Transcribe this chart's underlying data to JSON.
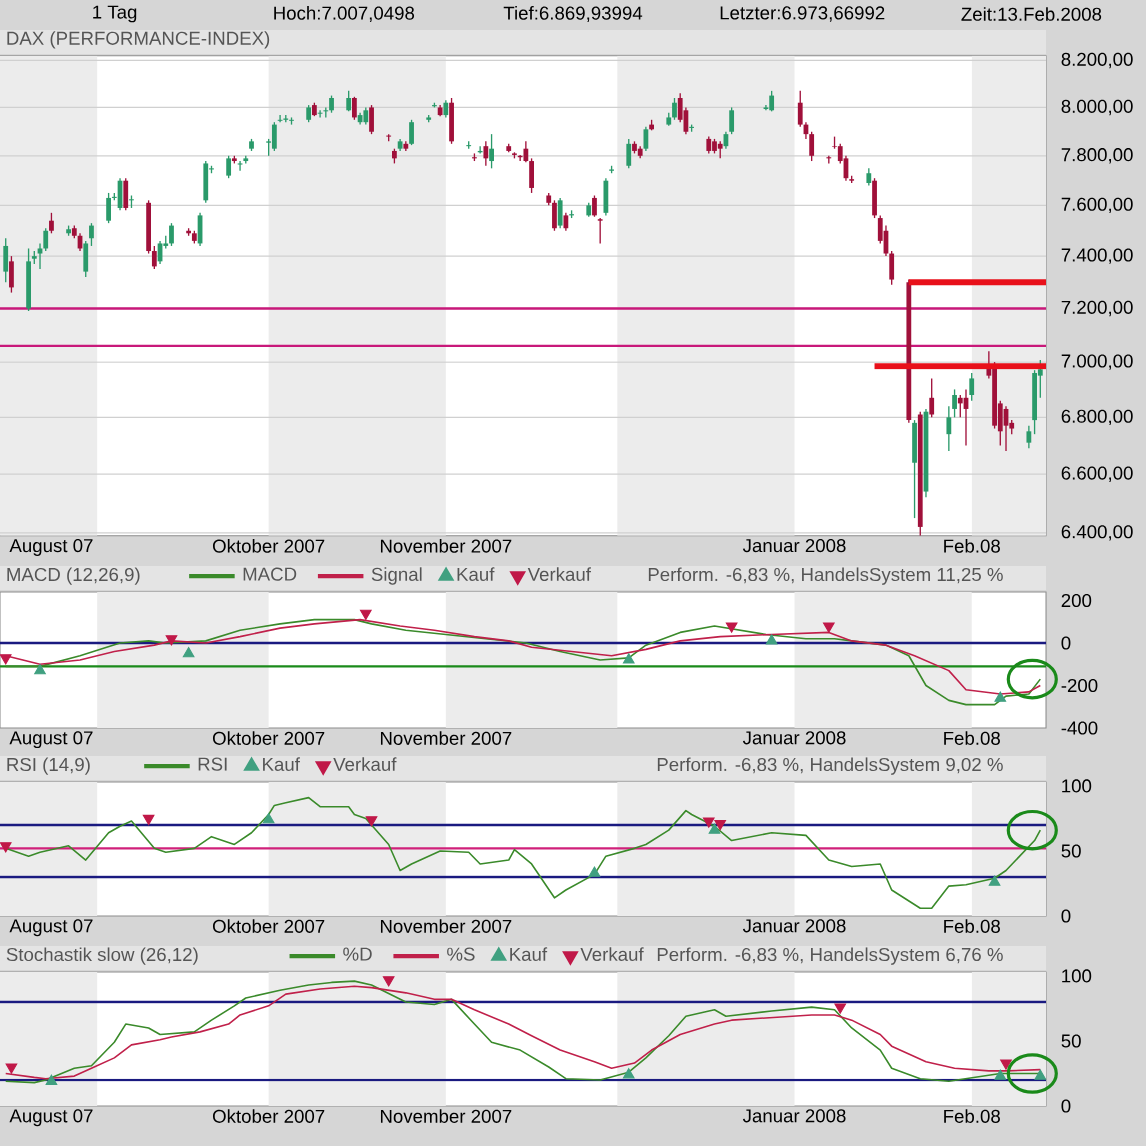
{
  "chart_data": [
    {
      "type": "candlestick",
      "title": "DAX (PERFORMANCE-INDEX)",
      "annotations": [
        "1 Tag",
        "Hoch:7.007,0498",
        "Tief:6.869,93994",
        "Letzter:6.973,66992",
        "Zeit:13.Feb.2008"
      ],
      "x": [
        "2007-08-16",
        "2007-08-17",
        "2007-08-20",
        "2007-08-21",
        "2007-08-22",
        "2007-08-23",
        "2007-08-24",
        "2007-08-27",
        "2007-08-28",
        "2007-08-29",
        "2007-08-30",
        "2007-08-31",
        "2007-09-03",
        "2007-09-04",
        "2007-09-05",
        "2007-09-06",
        "2007-09-07",
        "2007-09-10",
        "2007-09-11",
        "2007-09-12",
        "2007-09-13",
        "2007-09-14",
        "2007-09-17",
        "2007-09-18",
        "2007-09-19",
        "2007-09-20",
        "2007-09-21",
        "2007-09-24",
        "2007-09-25",
        "2007-09-26",
        "2007-09-27",
        "2007-09-28",
        "2007-10-01",
        "2007-10-02",
        "2007-10-03",
        "2007-10-04",
        "2007-10-05",
        "2007-10-08",
        "2007-10-09",
        "2007-10-10",
        "2007-10-11",
        "2007-10-12",
        "2007-10-15",
        "2007-10-16",
        "2007-10-17",
        "2007-10-18",
        "2007-10-19",
        "2007-10-22",
        "2007-10-23",
        "2007-10-24",
        "2007-10-25",
        "2007-10-26",
        "2007-10-29",
        "2007-10-30",
        "2007-10-31",
        "2007-11-01",
        "2007-11-02",
        "2007-11-05",
        "2007-11-06",
        "2007-11-07",
        "2007-11-08",
        "2007-11-09",
        "2007-11-12",
        "2007-11-13",
        "2007-11-14",
        "2007-11-15",
        "2007-11-16",
        "2007-11-19",
        "2007-11-20",
        "2007-11-21",
        "2007-11-22",
        "2007-11-23",
        "2007-11-26",
        "2007-11-27",
        "2007-11-28",
        "2007-11-29",
        "2007-11-30",
        "2007-12-03",
        "2007-12-04",
        "2007-12-05",
        "2007-12-06",
        "2007-12-07",
        "2007-12-10",
        "2007-12-11",
        "2007-12-12",
        "2007-12-13",
        "2007-12-14",
        "2007-12-17",
        "2007-12-18",
        "2007-12-19",
        "2007-12-20",
        "2007-12-21",
        "2007-12-27",
        "2007-12-28",
        "2008-01-02",
        "2008-01-03",
        "2008-01-04",
        "2008-01-07",
        "2008-01-08",
        "2008-01-09",
        "2008-01-10",
        "2008-01-11",
        "2008-01-14",
        "2008-01-15",
        "2008-01-16",
        "2008-01-17",
        "2008-01-18",
        "2008-01-21",
        "2008-01-22",
        "2008-01-23",
        "2008-01-24",
        "2008-01-25",
        "2008-01-28",
        "2008-01-29",
        "2008-01-30",
        "2008-01-31",
        "2008-02-01",
        "2008-02-04",
        "2008-02-05",
        "2008-02-06",
        "2008-02-07",
        "2008-02-08",
        "2008-02-11",
        "2008-02-12",
        "2008-02-13"
      ],
      "ohlc": [
        [
          7340,
          7470,
          7300,
          7440
        ],
        [
          7380,
          7400,
          7260,
          7280
        ],
        [
          7200,
          7430,
          7190,
          7380
        ],
        [
          7390,
          7420,
          7370,
          7400
        ],
        [
          7410,
          7450,
          7350,
          7430
        ],
        [
          7430,
          7510,
          7420,
          7500
        ],
        [
          7540,
          7570,
          7490,
          7500
        ],
        [
          7490,
          7520,
          7480,
          7505
        ],
        [
          7510,
          7520,
          7470,
          7480
        ],
        [
          7480,
          7490,
          7420,
          7430
        ],
        [
          7340,
          7460,
          7320,
          7450
        ],
        [
          7470,
          7530,
          7440,
          7520
        ],
        [
          7540,
          7650,
          7530,
          7630
        ],
        [
          7630,
          7650,
          7620,
          7635
        ],
        [
          7590,
          7710,
          7580,
          7700
        ],
        [
          7700,
          7710,
          7580,
          7590
        ],
        [
          7620,
          7640,
          7590,
          7625
        ],
        [
          7610,
          7620,
          7410,
          7420
        ],
        [
          7420,
          7440,
          7350,
          7360
        ],
        [
          7380,
          7460,
          7370,
          7450
        ],
        [
          7440,
          7480,
          7430,
          7450
        ],
        [
          7450,
          7530,
          7440,
          7520
        ],
        [
          7500,
          7510,
          7480,
          7490
        ],
        [
          7490,
          7500,
          7450,
          7460
        ],
        [
          7450,
          7570,
          7440,
          7560
        ],
        [
          7620,
          7780,
          7610,
          7770
        ],
        [
          7745,
          7760,
          7730,
          7750
        ],
        [
          7720,
          7800,
          7710,
          7790
        ],
        [
          7790,
          7800,
          7770,
          7780
        ],
        [
          7765,
          7780,
          7740,
          7770
        ],
        [
          7780,
          7800,
          7770,
          7790
        ],
        [
          7830,
          7870,
          7820,
          7860
        ],
        [
          7855,
          7870,
          7800,
          7860
        ],
        [
          7830,
          7940,
          7820,
          7930
        ],
        [
          7945,
          7970,
          7940,
          7950
        ],
        [
          7950,
          7970,
          7940,
          7955
        ],
        [
          7945,
          7960,
          7930,
          7950
        ],
        [
          7950,
          8010,
          7940,
          8000
        ],
        [
          8010,
          8020,
          7965,
          7970
        ],
        [
          7975,
          7990,
          7960,
          7980
        ],
        [
          7985,
          8000,
          7960,
          7990
        ],
        [
          7990,
          8050,
          7980,
          8040
        ],
        [
          7990,
          8070,
          7985,
          8040
        ],
        [
          8040,
          8045,
          7950,
          7960
        ],
        [
          7940,
          7980,
          7930,
          7970
        ],
        [
          7940,
          8000,
          7930,
          7990
        ],
        [
          8000,
          8010,
          7890,
          7900
        ],
        [
          7885,
          7890,
          7860,
          7880
        ],
        [
          7820,
          7830,
          7770,
          7790
        ],
        [
          7830,
          7870,
          7820,
          7860
        ],
        [
          7850,
          7860,
          7820,
          7830
        ],
        [
          7850,
          7950,
          7845,
          7940
        ],
        [
          7950,
          7970,
          7940,
          7960
        ],
        [
          8005,
          8020,
          8000,
          8010
        ],
        [
          8000,
          8010,
          7965,
          7970
        ],
        [
          7970,
          8030,
          7960,
          8020
        ],
        [
          8020,
          8040,
          7850,
          7860
        ],
        [
          7840,
          7860,
          7830,
          7845
        ],
        [
          7795,
          7810,
          7780,
          7790
        ],
        [
          7815,
          7840,
          7810,
          7820
        ],
        [
          7840,
          7860,
          7760,
          7790
        ],
        [
          7780,
          7890,
          7750,
          7830
        ],
        [
          7840,
          7850,
          7815,
          7820
        ],
        [
          7810,
          7815,
          7790,
          7805
        ],
        [
          7800,
          7805,
          7780,
          7795
        ],
        [
          7830,
          7860,
          7775,
          7780
        ],
        [
          7780,
          7790,
          7650,
          7670
        ],
        [
          7640,
          7650,
          7600,
          7610
        ],
        [
          7610,
          7620,
          7500,
          7510
        ],
        [
          7520,
          7630,
          7510,
          7620
        ],
        [
          7560,
          7570,
          7500,
          7510
        ],
        [
          7560,
          7580,
          7550,
          7565
        ],
        [
          7560,
          7610,
          7555,
          7600
        ],
        [
          7630,
          7640,
          7555,
          7560
        ],
        [
          7545,
          7550,
          7450,
          7540
        ],
        [
          7570,
          7710,
          7560,
          7700
        ],
        [
          7740,
          7760,
          7730,
          7745
        ],
        [
          7760,
          7870,
          7750,
          7850
        ],
        [
          7850,
          7860,
          7810,
          7820
        ],
        [
          7830,
          7840,
          7790,
          7800
        ],
        [
          7830,
          7920,
          7820,
          7910
        ],
        [
          7930,
          7950,
          7905,
          7910
        ],
        [
          7930,
          7980,
          7925,
          7960
        ],
        [
          7960,
          8040,
          7950,
          8020
        ],
        [
          8040,
          8060,
          7940,
          7950
        ],
        [
          7990,
          8000,
          7890,
          7900
        ],
        [
          7915,
          7930,
          7900,
          7920
        ],
        [
          7870,
          7880,
          7810,
          7820
        ],
        [
          7860,
          7870,
          7810,
          7820
        ],
        [
          7850,
          7860,
          7790,
          7830
        ],
        [
          7840,
          7900,
          7830,
          7890
        ],
        [
          7900,
          8000,
          7890,
          7990
        ],
        [
          7995,
          8010,
          7990,
          8000
        ],
        [
          7990,
          8070,
          7985,
          8050
        ],
        [
          8020,
          8070,
          7920,
          7930
        ],
        [
          7930,
          7940,
          7870,
          7890
        ],
        [
          7890,
          7900,
          7780,
          7800
        ],
        [
          7795,
          7800,
          7770,
          7790
        ],
        [
          7840,
          7880,
          7830,
          7838
        ],
        [
          7840,
          7850,
          7770,
          7780
        ],
        [
          7790,
          7800,
          7700,
          7710
        ],
        [
          7705,
          7720,
          7690,
          7700
        ],
        [
          7690,
          7750,
          7680,
          7730
        ],
        [
          7700,
          7710,
          7550,
          7560
        ],
        [
          7550,
          7560,
          7450,
          7460
        ],
        [
          7500,
          7520,
          7400,
          7410
        ],
        [
          7410,
          7420,
          7290,
          7310
        ],
        [
          7300,
          7310,
          6780,
          6790
        ],
        [
          6640,
          6790,
          6450,
          6780
        ],
        [
          6810,
          6820,
          6390,
          6420
        ],
        [
          6540,
          6830,
          6520,
          6820
        ],
        [
          6870,
          6940,
          6800,
          6810
        ],
        [
          6740,
          6840,
          6680,
          6800
        ],
        [
          6830,
          6900,
          6800,
          6880
        ],
        [
          6870,
          6880,
          6800,
          6850
        ],
        [
          6870,
          6900,
          6700,
          6830
        ],
        [
          6880,
          6960,
          6860,
          6940
        ],
        [
          6980,
          7040,
          6940,
          6950
        ],
        [
          6990,
          7000,
          6760,
          6770
        ],
        [
          6850,
          6860,
          6700,
          6750
        ],
        [
          6830,
          6840,
          6680,
          6770
        ],
        [
          6780,
          6790,
          6740,
          6760
        ],
        [
          6710,
          6770,
          6690,
          6750
        ],
        [
          6790,
          6970,
          6740,
          6960
        ],
        [
          6950,
          7007.0498,
          6869.93994,
          6973.66992
        ]
      ],
      "colors": [
        "#2a9a6a",
        "#a0103a",
        "#2a9a6a",
        "#2a9a6a",
        "#2a9a6a",
        "#2a9a6a",
        "#a0103a",
        "#2a9a6a",
        "#a0103a",
        "#a0103a",
        "#2a9a6a",
        "#2a9a6a",
        "#2a9a6a",
        "#2a9a6a",
        "#2a9a6a",
        "#a0103a",
        "#2a9a6a",
        "#a0103a",
        "#a0103a",
        "#2a9a6a",
        "#2a9a6a",
        "#2a9a6a",
        "#a0103a",
        "#a0103a",
        "#2a9a6a",
        "#2a9a6a",
        "#2a9a6a",
        "#2a9a6a",
        "#a0103a",
        "#2a9a6a",
        "#2a9a6a",
        "#2a9a6a",
        "#2a9a6a",
        "#2a9a6a",
        "#2a9a6a",
        "#2a9a6a",
        "#2a9a6a",
        "#2a9a6a",
        "#a0103a",
        "#2a9a6a",
        "#2a9a6a",
        "#2a9a6a",
        "#2a9a6a",
        "#a0103a",
        "#2a9a6a",
        "#2a9a6a",
        "#a0103a",
        "#a0103a",
        "#a0103a",
        "#2a9a6a",
        "#a0103a",
        "#2a9a6a",
        "#2a9a6a",
        "#2a9a6a",
        "#a0103a",
        "#2a9a6a",
        "#a0103a",
        "#2a9a6a",
        "#a0103a",
        "#2a9a6a",
        "#a0103a",
        "#2a9a6a",
        "#a0103a",
        "#a0103a",
        "#a0103a",
        "#a0103a",
        "#a0103a",
        "#a0103a",
        "#a0103a",
        "#2a9a6a",
        "#a0103a",
        "#2a9a6a",
        "#2a9a6a",
        "#a0103a",
        "#a0103a",
        "#2a9a6a",
        "#2a9a6a",
        "#2a9a6a",
        "#a0103a",
        "#a0103a",
        "#2a9a6a",
        "#a0103a",
        "#2a9a6a",
        "#2a9a6a",
        "#a0103a",
        "#a0103a",
        "#2a9a6a",
        "#a0103a",
        "#a0103a",
        "#a0103a",
        "#2a9a6a",
        "#2a9a6a",
        "#2a9a6a",
        "#2a9a6a",
        "#a0103a",
        "#a0103a",
        "#a0103a",
        "#a0103a",
        "#a0103a",
        "#a0103a",
        "#a0103a",
        "#a0103a",
        "#2a9a6a",
        "#a0103a",
        "#a0103a",
        "#a0103a",
        "#a0103a",
        "#a0103a",
        "#2a9a6a",
        "#a0103a",
        "#2a9a6a",
        "#a0103a",
        "#2a9a6a",
        "#2a9a6a",
        "#a0103a",
        "#a0103a",
        "#2a9a6a",
        "#a0103a",
        "#a0103a",
        "#a0103a",
        "#a0103a",
        "#a0103a",
        "#2a9a6a",
        "#2a9a6a",
        "#2a9a6a"
      ],
      "xlim": [
        "2007-08-15",
        "2008-02-14"
      ],
      "xticks": [
        {
          "value": "2007-08-24",
          "label": "August 07"
        },
        {
          "value": "2007-10-01",
          "label": "Oktober 2007"
        },
        {
          "value": "2007-11-01",
          "label": "November 2007"
        },
        {
          "value": "2008-01-01",
          "label": "Januar 2008"
        },
        {
          "value": "2008-02-01",
          "label": "Feb.08"
        }
      ],
      "ylim": [
        6390,
        8220
      ],
      "log": "y",
      "yticks": [
        {
          "value": 6400,
          "label": "6.400,00"
        },
        {
          "value": 6600,
          "label": "6.600,00"
        },
        {
          "value": 6800,
          "label": "6.800,00"
        },
        {
          "value": 7000,
          "label": "7.000,00"
        },
        {
          "value": 7200,
          "label": "7.200,00"
        },
        {
          "value": 7400,
          "label": "7.400,00"
        },
        {
          "value": 7600,
          "label": "7.600,00"
        },
        {
          "value": 7800,
          "label": "7.800,00"
        },
        {
          "value": 8000,
          "label": "8.000,00"
        },
        {
          "value": 8200,
          "label": "8.200,00"
        }
      ],
      "grid": "y",
      "bands": [
        {
          "axis": "x",
          "from": "2007-08-15",
          "to": "2007-09-01",
          "color": "#ececec"
        },
        {
          "axis": "x",
          "from": "2007-10-01",
          "to": "2007-11-01",
          "color": "#ececec"
        },
        {
          "axis": "x",
          "from": "2007-12-01",
          "to": "2008-01-01",
          "color": "#ececec"
        },
        {
          "axis": "x",
          "from": "2008-02-01",
          "to": "2008-02-14",
          "color": "#ececec"
        }
      ],
      "ref_lines": [
        {
          "axis": "y",
          "value": 7200,
          "color": "#c8187a"
        },
        {
          "axis": "y",
          "value": 7060,
          "color": "#c8187a"
        }
      ],
      "series": [
        {
          "type": "line",
          "color": "#e8101a",
          "x": [
            "2008-01-21",
            "2008-02-14"
          ],
          "values": [
            7300,
            7300
          ]
        },
        {
          "type": "line",
          "color": "#e8101a",
          "x": [
            "2008-01-15",
            "2008-02-14"
          ],
          "values": [
            6985,
            6985
          ]
        }
      ]
    },
    {
      "type": "line",
      "title": "MACD (12,26,9)",
      "subtitle": "Perform. -6,83 %, HandelsSystem 11,25 %",
      "legend": "top",
      "xlim": [
        "2007-08-15",
        "2008-02-14"
      ],
      "xticks": [
        {
          "value": "2007-08-24",
          "label": "August 07"
        },
        {
          "value": "2007-10-01",
          "label": "Oktober 2007"
        },
        {
          "value": "2007-11-01",
          "label": "November 2007"
        },
        {
          "value": "2008-01-01",
          "label": "Januar 2008"
        },
        {
          "value": "2008-02-01",
          "label": "Feb.08"
        }
      ],
      "ylim": [
        -400,
        240
      ],
      "yticks": [
        -400,
        -200,
        0,
        200
      ],
      "bands": [
        {
          "axis": "x",
          "from": "2007-09-01",
          "to": "2007-10-01",
          "color": "#ececec"
        },
        {
          "axis": "x",
          "from": "2007-11-01",
          "to": "2007-12-01",
          "color": "#ececec"
        },
        {
          "axis": "x",
          "from": "2008-01-01",
          "to": "2008-02-01",
          "color": "#ececec"
        }
      ],
      "ref_lines": [
        {
          "axis": "y",
          "value": 0,
          "color": "#1a1a80"
        },
        {
          "axis": "y",
          "value": -110,
          "color": "#1a8a1a"
        }
      ],
      "series": [
        {
          "name": "MACD",
          "type": "line",
          "color": "#3a8a2a",
          "x": [
            "2007-08-16",
            "2007-08-22",
            "2007-08-29",
            "2007-09-05",
            "2007-09-10",
            "2007-09-13",
            "2007-09-20",
            "2007-09-26",
            "2007-10-03",
            "2007-10-09",
            "2007-10-16",
            "2007-10-19",
            "2007-10-25",
            "2007-11-01",
            "2007-11-08",
            "2007-11-15",
            "2007-11-21",
            "2007-11-28",
            "2007-12-03",
            "2007-12-06",
            "2007-12-12",
            "2007-12-18",
            "2007-12-27",
            "2008-01-03",
            "2008-01-08",
            "2008-01-11",
            "2008-01-17",
            "2008-01-21",
            "2008-01-24",
            "2008-01-28",
            "2008-01-31",
            "2008-02-05",
            "2008-02-07",
            "2008-02-11",
            "2008-02-13"
          ],
          "values": [
            -110,
            -110,
            -60,
            0,
            10,
            0,
            10,
            60,
            90,
            110,
            110,
            90,
            60,
            40,
            20,
            0,
            -40,
            -80,
            -70,
            -10,
            50,
            80,
            40,
            20,
            20,
            10,
            -10,
            -60,
            -200,
            -270,
            -290,
            -290,
            -250,
            -240,
            -170
          ]
        },
        {
          "name": "Signal",
          "type": "line",
          "color": "#c0204a",
          "x": [
            "2007-08-16",
            "2007-08-22",
            "2007-08-29",
            "2007-09-04",
            "2007-09-11",
            "2007-09-14",
            "2007-09-20",
            "2007-09-26",
            "2007-10-03",
            "2007-10-09",
            "2007-10-17",
            "2007-10-24",
            "2007-10-30",
            "2007-11-06",
            "2007-11-12",
            "2007-11-16",
            "2007-11-23",
            "2007-11-30",
            "2007-12-06",
            "2007-12-12",
            "2007-12-19",
            "2007-12-28",
            "2008-01-07",
            "2008-01-11",
            "2008-01-17",
            "2008-01-22",
            "2008-01-28",
            "2008-01-31",
            "2008-02-06",
            "2008-02-11",
            "2008-02-13"
          ],
          "values": [
            -60,
            -100,
            -80,
            -40,
            -10,
            10,
            0,
            30,
            70,
            90,
            110,
            80,
            60,
            30,
            10,
            -20,
            -40,
            -60,
            -30,
            10,
            30,
            40,
            50,
            10,
            -10,
            -60,
            -130,
            -220,
            -240,
            -230,
            -200
          ]
        },
        {
          "name": "Kauf",
          "type": "scatter",
          "marker": "triangle",
          "color": "#40a080",
          "x": [
            "2007-08-22",
            "2007-09-17",
            "2007-12-03",
            "2007-12-28",
            "2008-02-06"
          ],
          "values": [
            -130,
            -50,
            -80,
            10,
            -260
          ]
        },
        {
          "name": "Verkauf",
          "type": "scatter",
          "marker": "triangle-down",
          "color": "#c01848",
          "x": [
            "2007-08-16",
            "2007-09-14",
            "2007-10-18",
            "2007-12-21",
            "2008-01-07"
          ],
          "values": [
            -70,
            20,
            140,
            80,
            80
          ]
        }
      ]
    },
    {
      "type": "line",
      "title": "RSI (14,9)",
      "subtitle": "Perform. -6,83 %, HandelsSystem 9,02 %",
      "legend": "top",
      "xlim": [
        "2007-08-15",
        "2008-02-14"
      ],
      "xticks": [
        {
          "value": "2007-08-24",
          "label": "August 07"
        },
        {
          "value": "2007-10-01",
          "label": "Oktober 2007"
        },
        {
          "value": "2007-11-01",
          "label": "November 2007"
        },
        {
          "value": "2008-01-01",
          "label": "Januar 2008"
        },
        {
          "value": "2008-02-01",
          "label": "Feb.08"
        }
      ],
      "ylim": [
        0,
        103
      ],
      "yticks": [
        0,
        50,
        100
      ],
      "bands": [
        {
          "axis": "x",
          "from": "2007-08-15",
          "to": "2007-09-01",
          "color": "#ececec"
        },
        {
          "axis": "x",
          "from": "2007-10-01",
          "to": "2007-11-01",
          "color": "#ececec"
        },
        {
          "axis": "x",
          "from": "2007-12-01",
          "to": "2008-01-01",
          "color": "#ececec"
        },
        {
          "axis": "x",
          "from": "2008-02-01",
          "to": "2008-02-14",
          "color": "#ececec"
        }
      ],
      "ref_lines": [
        {
          "axis": "y",
          "value": 70,
          "color": "#1a1a80"
        },
        {
          "axis": "y",
          "value": 30,
          "color": "#1a1a80"
        },
        {
          "axis": "y",
          "value": 52,
          "color": "#d0207a"
        }
      ],
      "series": [
        {
          "name": "RSI",
          "type": "line",
          "color": "#3a8a2a",
          "x": [
            "2007-08-16",
            "2007-08-20",
            "2007-08-22",
            "2007-08-27",
            "2007-08-30",
            "2007-09-03",
            "2007-09-05",
            "2007-09-07",
            "2007-09-11",
            "2007-09-13",
            "2007-09-18",
            "2007-09-21",
            "2007-09-25",
            "2007-09-28",
            "2007-10-01",
            "2007-10-02",
            "2007-10-04",
            "2007-10-08",
            "2007-10-10",
            "2007-10-15",
            "2007-10-16",
            "2007-10-18",
            "2007-10-22",
            "2007-10-24",
            "2007-10-26",
            "2007-10-31",
            "2007-11-05",
            "2007-11-07",
            "2007-11-12",
            "2007-11-13",
            "2007-11-16",
            "2007-11-20",
            "2007-11-22",
            "2007-11-27",
            "2007-11-29",
            "2007-12-04",
            "2007-12-06",
            "2007-12-10",
            "2007-12-13",
            "2007-12-14",
            "2007-12-18",
            "2007-12-21",
            "2007-12-28",
            "2008-01-03",
            "2008-01-07",
            "2008-01-11",
            "2008-01-16",
            "2008-01-18",
            "2008-01-23",
            "2008-01-25",
            "2008-01-28",
            "2008-01-31",
            "2008-02-05",
            "2008-02-07",
            "2008-02-12",
            "2008-02-13"
          ],
          "values": [
            52,
            46,
            49,
            54,
            43,
            64,
            69,
            73,
            52,
            49,
            52,
            61,
            55,
            64,
            78,
            85,
            87,
            91,
            84,
            84,
            78,
            75,
            55,
            35,
            40,
            50,
            49,
            40,
            43,
            51,
            40,
            14,
            20,
            32,
            46,
            52,
            55,
            66,
            81,
            78,
            69,
            58,
            64,
            62,
            43,
            38,
            40,
            20,
            6,
            6,
            23,
            24,
            29,
            35,
            58,
            66
          ]
        },
        {
          "name": "Kauf",
          "type": "scatter",
          "marker": "triangle",
          "color": "#40a080",
          "x": [
            "2007-10-01",
            "2007-11-27",
            "2007-12-18",
            "2008-02-05"
          ],
          "values": [
            74,
            33,
            66,
            26
          ]
        },
        {
          "name": "Verkauf",
          "type": "scatter",
          "marker": "triangle-down",
          "color": "#c01848",
          "x": [
            "2007-08-16",
            "2007-09-10",
            "2007-10-19",
            "2007-12-17",
            "2007-12-19"
          ],
          "values": [
            54,
            75,
            74,
            73,
            71
          ]
        }
      ]
    },
    {
      "type": "line",
      "title": "Stochastik slow (26,12)",
      "subtitle": "Perform. -6,83 %, HandelsSystem 6,76 %",
      "legend": "top",
      "xlim": [
        "2007-08-15",
        "2008-02-14"
      ],
      "xticks": [
        {
          "value": "2007-08-24",
          "label": "August 07"
        },
        {
          "value": "2007-10-01",
          "label": "Oktober 2007"
        },
        {
          "value": "2007-11-01",
          "label": "November 2007"
        },
        {
          "value": "2008-01-01",
          "label": "Januar 2008"
        },
        {
          "value": "2008-02-01",
          "label": "Feb.08"
        }
      ],
      "ylim": [
        0,
        103
      ],
      "yticks": [
        0,
        50,
        100
      ],
      "bands": [
        {
          "axis": "x",
          "from": "2007-08-15",
          "to": "2007-09-01",
          "color": "#ececec"
        },
        {
          "axis": "x",
          "from": "2007-10-01",
          "to": "2007-11-01",
          "color": "#ececec"
        },
        {
          "axis": "x",
          "from": "2007-12-01",
          "to": "2008-01-01",
          "color": "#ececec"
        },
        {
          "axis": "x",
          "from": "2008-02-01",
          "to": "2008-02-14",
          "color": "#ececec"
        }
      ],
      "ref_lines": [
        {
          "axis": "y",
          "value": 80,
          "color": "#1a1a80"
        },
        {
          "axis": "y",
          "value": 20,
          "color": "#1a1a80"
        }
      ],
      "series": [
        {
          "name": "%D",
          "type": "line",
          "color": "#3a8a2a",
          "x": [
            "2007-08-16",
            "2007-08-21",
            "2007-08-23",
            "2007-08-28",
            "2007-08-31",
            "2007-09-04",
            "2007-09-06",
            "2007-09-10",
            "2007-09-12",
            "2007-09-18",
            "2007-09-21",
            "2007-09-25",
            "2007-09-27",
            "2007-10-03",
            "2007-10-08",
            "2007-10-12",
            "2007-10-16",
            "2007-10-19",
            "2007-10-25",
            "2007-10-30",
            "2007-11-02",
            "2007-11-06",
            "2007-11-09",
            "2007-11-14",
            "2007-11-19",
            "2007-11-22",
            "2007-11-28",
            "2007-12-03",
            "2007-12-06",
            "2007-12-10",
            "2007-12-13",
            "2007-12-18",
            "2007-12-20",
            "2007-12-28",
            "2008-01-04",
            "2008-01-08",
            "2008-01-11",
            "2008-01-16",
            "2008-01-18",
            "2008-01-23",
            "2008-01-28",
            "2008-01-31",
            "2008-02-06",
            "2008-02-11",
            "2008-02-13"
          ],
          "values": [
            19,
            18,
            20,
            29,
            31,
            49,
            63,
            60,
            55,
            57,
            66,
            77,
            83,
            89,
            93,
            95,
            96,
            93,
            80,
            78,
            82,
            63,
            49,
            43,
            30,
            21,
            20,
            26,
            37,
            54,
            69,
            74,
            69,
            73,
            76,
            74,
            60,
            43,
            29,
            21,
            19,
            21,
            25,
            25,
            25
          ]
        },
        {
          "name": "%S",
          "type": "line",
          "color": "#c0204a",
          "x": [
            "2007-08-16",
            "2007-08-21",
            "2007-08-23",
            "2007-08-28",
            "2007-08-31",
            "2007-09-04",
            "2007-09-07",
            "2007-09-12",
            "2007-09-14",
            "2007-09-19",
            "2007-09-24",
            "2007-09-26",
            "2007-10-01",
            "2007-10-04",
            "2007-10-10",
            "2007-10-16",
            "2007-10-19",
            "2007-10-25",
            "2007-10-30",
            "2007-11-02",
            "2007-11-06",
            "2007-11-12",
            "2007-11-16",
            "2007-11-21",
            "2007-11-27",
            "2007-11-30",
            "2007-12-04",
            "2007-12-07",
            "2007-12-12",
            "2007-12-18",
            "2007-12-21",
            "2008-01-04",
            "2008-01-08",
            "2008-01-11",
            "2008-01-16",
            "2008-01-18",
            "2008-01-24",
            "2008-01-29",
            "2008-02-04",
            "2008-02-07",
            "2008-02-13"
          ],
          "values": [
            25,
            22,
            21,
            23,
            29,
            37,
            47,
            51,
            53,
            57,
            63,
            70,
            77,
            86,
            90,
            92,
            91,
            87,
            82,
            82,
            74,
            63,
            54,
            43,
            34,
            29,
            33,
            43,
            55,
            63,
            66,
            70,
            70,
            66,
            55,
            46,
            34,
            29,
            27,
            27,
            28
          ]
        },
        {
          "name": "Kauf",
          "type": "scatter",
          "marker": "triangle",
          "color": "#40a080",
          "x": [
            "2007-08-24",
            "2007-12-03",
            "2008-02-06",
            "2008-02-13"
          ],
          "values": [
            19,
            24,
            23,
            23
          ]
        },
        {
          "name": "Verkauf",
          "type": "scatter",
          "marker": "triangle-down",
          "color": "#c01848",
          "x": [
            "2007-08-17",
            "2007-10-22",
            "2008-01-09",
            "2008-02-07"
          ],
          "values": [
            30,
            97,
            76,
            33
          ]
        }
      ]
    }
  ]
}
